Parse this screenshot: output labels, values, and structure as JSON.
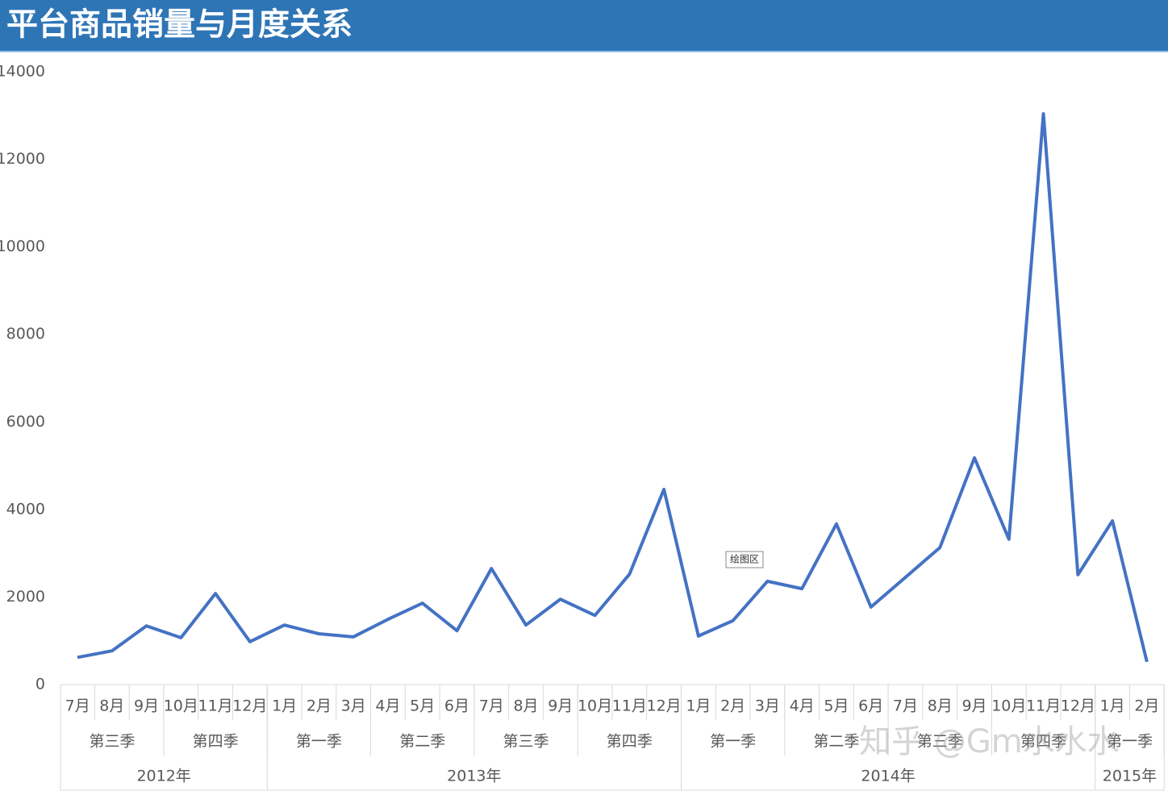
{
  "chart_data": {
    "type": "line",
    "title": "平台商品销量与月度关系",
    "categories": [
      [
        "2012年",
        "第三季",
        "7月"
      ],
      [
        "2012年",
        "第三季",
        "8月"
      ],
      [
        "2012年",
        "第三季",
        "9月"
      ],
      [
        "2012年",
        "第四季",
        "10月"
      ],
      [
        "2012年",
        "第四季",
        "11月"
      ],
      [
        "2012年",
        "第四季",
        "12月"
      ],
      [
        "2013年",
        "第一季",
        "1月"
      ],
      [
        "2013年",
        "第一季",
        "2月"
      ],
      [
        "2013年",
        "第一季",
        "3月"
      ],
      [
        "2013年",
        "第二季",
        "4月"
      ],
      [
        "2013年",
        "第二季",
        "5月"
      ],
      [
        "2013年",
        "第二季",
        "6月"
      ],
      [
        "2013年",
        "第三季",
        "7月"
      ],
      [
        "2013年",
        "第三季",
        "8月"
      ],
      [
        "2013年",
        "第三季",
        "9月"
      ],
      [
        "2013年",
        "第四季",
        "10月"
      ],
      [
        "2013年",
        "第四季",
        "11月"
      ],
      [
        "2013年",
        "第四季",
        "12月"
      ],
      [
        "2014年",
        "第一季",
        "1月"
      ],
      [
        "2014年",
        "第一季",
        "2月"
      ],
      [
        "2014年",
        "第一季",
        "3月"
      ],
      [
        "2014年",
        "第二季",
        "4月"
      ],
      [
        "2014年",
        "第二季",
        "5月"
      ],
      [
        "2014年",
        "第二季",
        "6月"
      ],
      [
        "2014年",
        "第三季",
        "7月"
      ],
      [
        "2014年",
        "第三季",
        "8月"
      ],
      [
        "2014年",
        "第三季",
        "9月"
      ],
      [
        "2014年",
        "第四季",
        "10月"
      ],
      [
        "2014年",
        "第四季",
        "11月"
      ],
      [
        "2014年",
        "第四季",
        "12月"
      ],
      [
        "2015年",
        "第一季",
        "1月"
      ],
      [
        "2015年",
        "第一季",
        "2月"
      ]
    ],
    "series": [
      {
        "color": "#4472c4",
        "values": [
          620,
          770,
          1340,
          1070,
          2080,
          980,
          1360,
          1160,
          1090,
          1490,
          1860,
          1230,
          2650,
          1360,
          1950,
          1580,
          2520,
          4460,
          1110,
          1460,
          2360,
          2190,
          3670,
          1770,
          2450,
          3130,
          5180,
          3320,
          13040,
          2510,
          3740,
          520
        ]
      }
    ],
    "ylim": [
      0,
      14000
    ],
    "yticks": [
      0,
      2000,
      4000,
      6000,
      8000,
      10000,
      12000,
      14000
    ],
    "grid": false,
    "annotation": "绘图区",
    "watermark": "知乎 @Gm水水水"
  }
}
